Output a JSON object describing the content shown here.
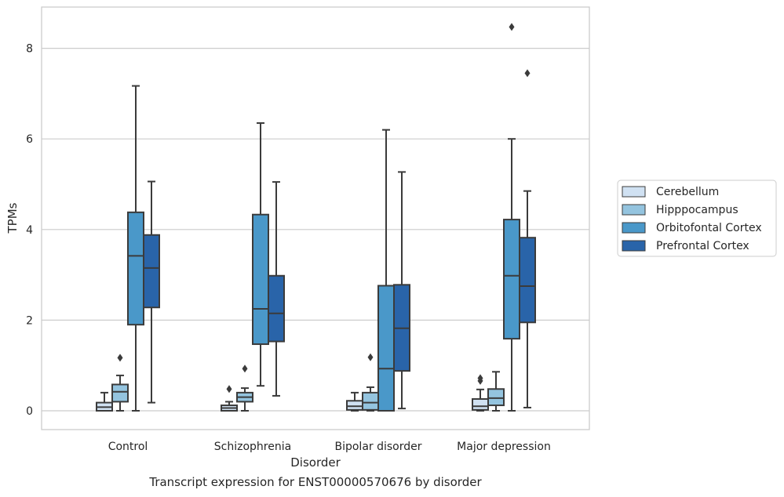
{
  "chart_data": {
    "type": "box",
    "title": "",
    "caption": "Transcript expression for ENST00000570676 by disorder",
    "xlabel": "Disorder",
    "ylabel": "TPMs",
    "ylim": [
      -0.4,
      8.9
    ],
    "yticks": [
      0,
      2,
      4,
      6,
      8
    ],
    "grid": true,
    "legend_position": "right",
    "categories": [
      "Control",
      "Schizophrenia",
      "Bipolar disorder",
      "Major depression"
    ],
    "series": [
      {
        "name": "Cerebellum",
        "color": "#d0e1f2",
        "boxes": [
          {
            "whislo": 0.0,
            "q1": 0.0,
            "med": 0.08,
            "q3": 0.18,
            "whishi": 0.4,
            "fliers": []
          },
          {
            "whislo": 0.0,
            "q1": 0.0,
            "med": 0.06,
            "q3": 0.12,
            "whishi": 0.2,
            "fliers": [
              0.48
            ]
          },
          {
            "whislo": 0.0,
            "q1": 0.02,
            "med": 0.1,
            "q3": 0.22,
            "whishi": 0.4,
            "fliers": []
          },
          {
            "whislo": 0.0,
            "q1": 0.02,
            "med": 0.1,
            "q3": 0.26,
            "whishi": 0.47,
            "fliers": [
              0.66,
              0.72
            ]
          }
        ]
      },
      {
        "name": "Hipppocampus",
        "color": "#94c4df",
        "boxes": [
          {
            "whislo": 0.0,
            "q1": 0.2,
            "med": 0.42,
            "q3": 0.58,
            "whishi": 0.78,
            "fliers": [
              1.17
            ]
          },
          {
            "whislo": 0.0,
            "q1": 0.2,
            "med": 0.3,
            "q3": 0.4,
            "whishi": 0.5,
            "fliers": [
              0.93
            ]
          },
          {
            "whislo": 0.0,
            "q1": 0.02,
            "med": 0.18,
            "q3": 0.4,
            "whishi": 0.52,
            "fliers": [
              1.18
            ]
          },
          {
            "whislo": 0.0,
            "q1": 0.12,
            "med": 0.28,
            "q3": 0.48,
            "whishi": 0.86,
            "fliers": []
          }
        ]
      },
      {
        "name": "Orbitofontal Cortex",
        "color": "#4a98c9",
        "boxes": [
          {
            "whislo": 0.0,
            "q1": 1.9,
            "med": 3.42,
            "q3": 4.38,
            "whishi": 7.17,
            "fliers": []
          },
          {
            "whislo": 0.55,
            "q1": 1.47,
            "med": 2.25,
            "q3": 4.33,
            "whishi": 6.35,
            "fliers": []
          },
          {
            "whislo": 0.0,
            "q1": 0.0,
            "med": 0.93,
            "q3": 2.76,
            "whishi": 6.2,
            "fliers": []
          },
          {
            "whislo": 0.0,
            "q1": 1.59,
            "med": 2.98,
            "q3": 4.22,
            "whishi": 6.0,
            "fliers": [
              8.47
            ]
          }
        ]
      },
      {
        "name": "Prefrontal Cortex",
        "color": "#2964a9",
        "boxes": [
          {
            "whislo": 0.18,
            "q1": 2.28,
            "med": 3.15,
            "q3": 3.88,
            "whishi": 5.06,
            "fliers": []
          },
          {
            "whislo": 0.33,
            "q1": 1.53,
            "med": 2.15,
            "q3": 2.98,
            "whishi": 5.05,
            "fliers": []
          },
          {
            "whislo": 0.05,
            "q1": 0.88,
            "med": 1.82,
            "q3": 2.78,
            "whishi": 5.27,
            "fliers": []
          },
          {
            "whislo": 0.07,
            "q1": 1.95,
            "med": 2.75,
            "q3": 3.82,
            "whishi": 4.85,
            "fliers": [
              7.45
            ]
          }
        ]
      }
    ]
  }
}
